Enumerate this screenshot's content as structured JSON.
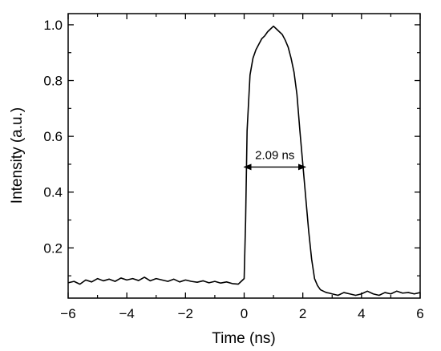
{
  "chart_data": {
    "type": "line",
    "xlabel": "Time (ns)",
    "ylabel": "Intensity (a.u.)",
    "xlim": [
      -6,
      6
    ],
    "ylim": [
      0.02,
      1.04
    ],
    "grid": false,
    "x_ticks": [
      -6,
      -4,
      -2,
      0,
      2,
      4,
      6
    ],
    "x_tick_labels": [
      "−6",
      "−4",
      "−2",
      "0",
      "2",
      "4",
      "6"
    ],
    "y_ticks": [
      0.2,
      0.4,
      0.6,
      0.8,
      1.0
    ],
    "y_tick_labels": [
      "0.2",
      "0.4",
      "0.6",
      "0.8",
      "1.0"
    ],
    "series": [
      {
        "x": [
          -6.0,
          -5.8,
          -5.6,
          -5.4,
          -5.2,
          -5.0,
          -4.8,
          -4.6,
          -4.4,
          -4.2,
          -4.0,
          -3.8,
          -3.6,
          -3.4,
          -3.2,
          -3.0,
          -2.8,
          -2.6,
          -2.4,
          -2.2,
          -2.0,
          -1.8,
          -1.6,
          -1.4,
          -1.2,
          -1.0,
          -0.8,
          -0.6,
          -0.4,
          -0.2,
          -0.1,
          0.0,
          0.05,
          0.1,
          0.2,
          0.3,
          0.4,
          0.5,
          0.6,
          0.7,
          0.8,
          0.9,
          1.0,
          1.1,
          1.2,
          1.3,
          1.4,
          1.5,
          1.6,
          1.7,
          1.8,
          1.9,
          2.0,
          2.1,
          2.2,
          2.3,
          2.4,
          2.5,
          2.6,
          2.7,
          2.8,
          2.9,
          3.0,
          3.2,
          3.4,
          3.6,
          3.8,
          4.0,
          4.2,
          4.4,
          4.6,
          4.8,
          5.0,
          5.2,
          5.4,
          5.6,
          5.8,
          6.0
        ],
        "values": [
          0.075,
          0.08,
          0.07,
          0.085,
          0.078,
          0.09,
          0.082,
          0.088,
          0.08,
          0.092,
          0.085,
          0.09,
          0.083,
          0.095,
          0.082,
          0.09,
          0.085,
          0.08,
          0.088,
          0.078,
          0.085,
          0.08,
          0.077,
          0.082,
          0.075,
          0.08,
          0.074,
          0.078,
          0.072,
          0.07,
          0.08,
          0.09,
          0.3,
          0.62,
          0.82,
          0.88,
          0.91,
          0.93,
          0.95,
          0.96,
          0.975,
          0.985,
          0.995,
          0.985,
          0.975,
          0.965,
          0.945,
          0.92,
          0.88,
          0.83,
          0.75,
          0.62,
          0.5,
          0.38,
          0.26,
          0.16,
          0.09,
          0.065,
          0.05,
          0.045,
          0.04,
          0.038,
          0.035,
          0.03,
          0.04,
          0.035,
          0.03,
          0.035,
          0.045,
          0.035,
          0.03,
          0.04,
          0.035,
          0.045,
          0.038,
          0.04,
          0.035,
          0.04
        ],
        "color": "#000000"
      }
    ],
    "annotations": [
      {
        "text": "2.09 ns",
        "x_start": 0.0,
        "x_end": 2.09,
        "y": 0.49
      }
    ]
  }
}
